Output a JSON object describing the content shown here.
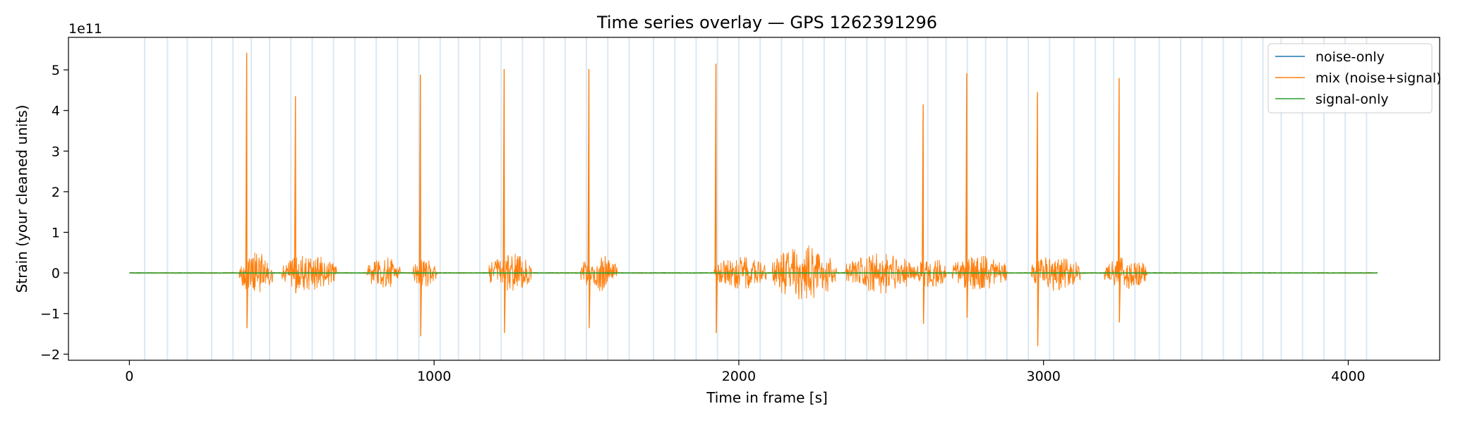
{
  "chart_data": {
    "type": "line",
    "title": "Time series overlay — GPS 1262391296",
    "xlabel": "Time in frame [s]",
    "ylabel": "Strain (your cleaned units)",
    "y_offset_label": "1e11",
    "xlim": [
      -200,
      4300
    ],
    "ylim": [
      -2.15,
      5.8
    ],
    "x_ticks": [
      0,
      1000,
      2000,
      3000,
      4000
    ],
    "x_tick_labels": [
      "0",
      "1000",
      "2000",
      "3000",
      "4000"
    ],
    "y_ticks": [
      -2,
      -1,
      0,
      1,
      2,
      3,
      4,
      5
    ],
    "y_tick_labels": [
      "−2",
      "−1",
      "0",
      "1",
      "2",
      "3",
      "4",
      "5"
    ],
    "legend_position": "top-right",
    "x_range": [
      0,
      4096
    ],
    "series": [
      {
        "name": "noise-only",
        "color": "#1f77b4"
      },
      {
        "name": "mix (noise+signal)",
        "color": "#ff7f0e"
      },
      {
        "name": "signal-only",
        "color": "#2ca02c"
      }
    ],
    "segment_boundaries": [
      50,
      125,
      190,
      270,
      340,
      400,
      460,
      530,
      600,
      670,
      740,
      810,
      880,
      950,
      1020,
      1080,
      1150,
      1220,
      1290,
      1360,
      1430,
      1500,
      1570,
      1640,
      1720,
      1790,
      1860,
      1930,
      2000,
      2070,
      2140,
      2210,
      2280,
      2350,
      2420,
      2480,
      2550,
      2620,
      2680,
      2750,
      2810,
      2880,
      2950,
      3020,
      3100,
      3170,
      3230,
      3300,
      3380,
      3450,
      3520,
      3590,
      3650,
      3720,
      3780,
      3850,
      3920,
      3990,
      4060
    ],
    "boundary_color": "#dbe8f3",
    "bursts": [
      {
        "start": 360,
        "end": 470,
        "amp": 0.5
      },
      {
        "start": 500,
        "end": 680,
        "amp": 0.45
      },
      {
        "start": 780,
        "end": 890,
        "amp": 0.4
      },
      {
        "start": 930,
        "end": 1010,
        "amp": 0.35
      },
      {
        "start": 1180,
        "end": 1320,
        "amp": 0.5
      },
      {
        "start": 1480,
        "end": 1600,
        "amp": 0.45
      },
      {
        "start": 1920,
        "end": 2090,
        "amp": 0.4
      },
      {
        "start": 2110,
        "end": 2320,
        "amp": 0.7
      },
      {
        "start": 2350,
        "end": 2580,
        "amp": 0.5
      },
      {
        "start": 2580,
        "end": 2680,
        "amp": 0.4
      },
      {
        "start": 2700,
        "end": 2880,
        "amp": 0.45
      },
      {
        "start": 2960,
        "end": 3120,
        "amp": 0.45
      },
      {
        "start": 3200,
        "end": 3340,
        "amp": 0.4
      }
    ],
    "spikes": [
      {
        "x": 385,
        "top": 5.42,
        "bottom": -1.36
      },
      {
        "x": 545,
        "top": 4.35,
        "bottom": -0.5
      },
      {
        "x": 955,
        "top": 4.88,
        "bottom": -1.56
      },
      {
        "x": 1230,
        "top": 5.02,
        "bottom": -1.48
      },
      {
        "x": 1508,
        "top": 5.02,
        "bottom": -1.36
      },
      {
        "x": 1925,
        "top": 5.15,
        "bottom": -1.48
      },
      {
        "x": 2605,
        "top": 4.15,
        "bottom": -1.25
      },
      {
        "x": 2748,
        "top": 4.92,
        "bottom": -1.1
      },
      {
        "x": 2980,
        "top": 4.45,
        "bottom": -1.8
      },
      {
        "x": 3248,
        "top": 4.8,
        "bottom": -1.22
      }
    ]
  }
}
